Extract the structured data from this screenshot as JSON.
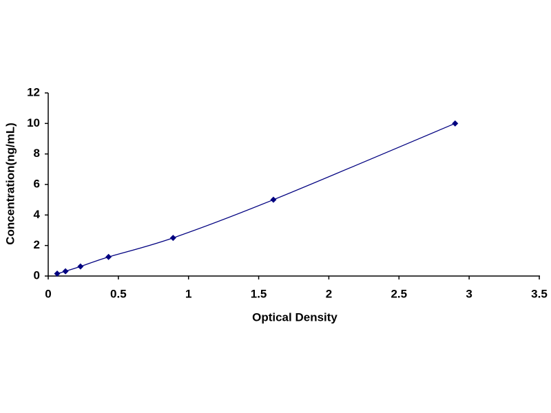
{
  "chart_data": {
    "type": "line",
    "x_label": "Optical Density",
    "y_label": "Concentration(ng/mL)",
    "x": [
      0.064,
      0.123,
      0.23,
      0.43,
      0.89,
      1.605,
      2.9
    ],
    "values": [
      0.156,
      0.312,
      0.625,
      1.25,
      2.5,
      5,
      10
    ],
    "color": "#000080",
    "marker": "diamond",
    "xlim": [
      0,
      3.5
    ],
    "xticks": [
      0,
      0.5,
      1,
      1.5,
      2,
      2.5,
      3,
      3.5
    ],
    "ylim": [
      0,
      12
    ],
    "yticks": [
      0,
      2,
      4,
      6,
      8,
      10,
      12
    ],
    "grid": false
  }
}
